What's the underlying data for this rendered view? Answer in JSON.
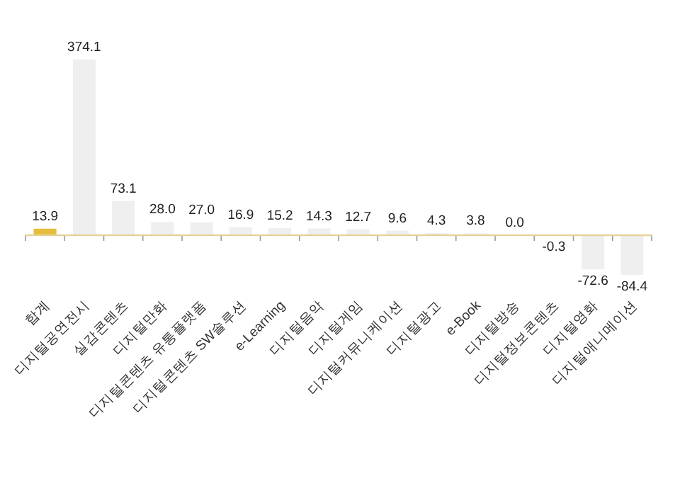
{
  "chart_data": {
    "type": "bar",
    "categories": [
      "합계",
      "디지털공연전시",
      "실감콘텐츠",
      "디지털만화",
      "디지털콘텐츠 유통플랫폼",
      "디지털콘텐츠 SW솔루션",
      "e-Learning",
      "디지털음악",
      "디지털게임",
      "디지털커뮤니케이션",
      "디지털광고",
      "e-Book",
      "디지털방송",
      "디지털정보콘텐츠",
      "디지털영화",
      "디지털애니메이션"
    ],
    "values": [
      13.9,
      374.1,
      73.1,
      28.0,
      27.0,
      16.9,
      15.2,
      14.3,
      12.7,
      9.6,
      4.3,
      3.8,
      0.0,
      -0.3,
      -72.6,
      -84.4
    ],
    "colors": [
      "#e6bd3c",
      "#efefef",
      "#efefef",
      "#efefef",
      "#efefef",
      "#efefef",
      "#efefef",
      "#efefef",
      "#efefef",
      "#efefef",
      "#efefef",
      "#efefef",
      "#efefef",
      "#efefef",
      "#efefef",
      "#efefef"
    ],
    "ref_lines": [
      {
        "axis": "y",
        "value": 0,
        "color": "#e3d39a"
      }
    ],
    "value_labels": [
      "13.9",
      "374.1",
      "73.1",
      "28.0",
      "27.0",
      "16.9",
      "15.2",
      "14.3",
      "12.7",
      "9.6",
      "4.3",
      "3.8",
      "0.0",
      "-0.3",
      "-72.6",
      "-84.4"
    ]
  }
}
